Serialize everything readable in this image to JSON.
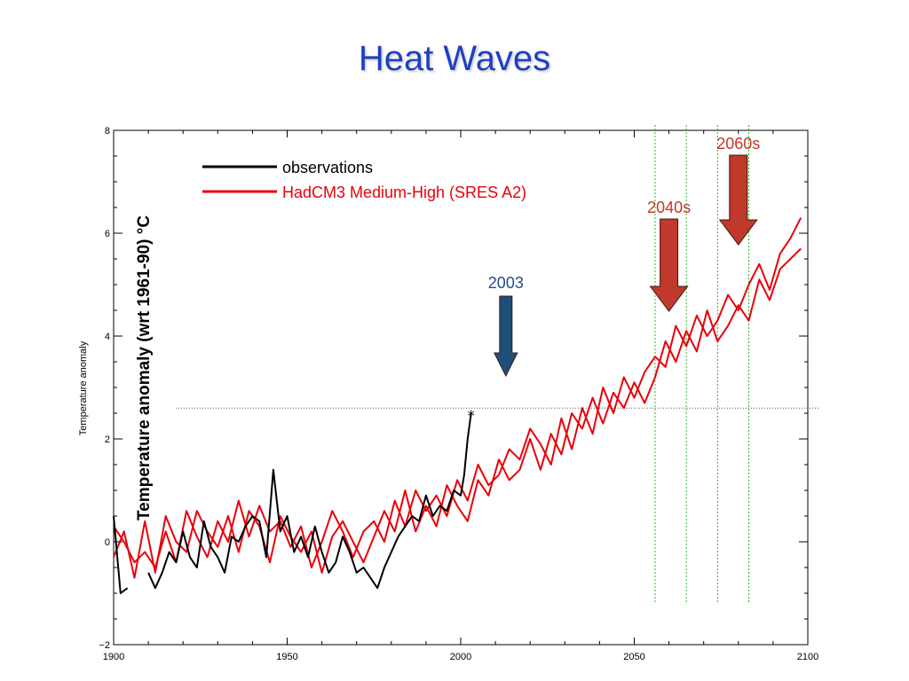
{
  "slide": {
    "title": "Heat Waves"
  },
  "chart_data": {
    "type": "line",
    "xlim": [
      1900,
      2100
    ],
    "ylim": [
      -2,
      8
    ],
    "x_ticks": [
      "1900",
      "1950",
      "2000",
      "2050",
      "2100"
    ],
    "y_ticks": [
      "−2",
      "0",
      "2",
      "4",
      "6",
      "8"
    ],
    "ylabel_small": "Temperature anomaly",
    "ylabel": "Temperature anomaly (wrt 1961-90)  °C",
    "grid": false,
    "legend_placement": "top-left",
    "legend": [
      {
        "label": "observations",
        "color": "#000000",
        "text_color": "#000000"
      },
      {
        "label": "HadCM3 Medium-High (SRES A2)",
        "color": "#e8000b",
        "text_color": "#e8000b"
      }
    ],
    "reference_line": {
      "y": 2.6,
      "style": "dotted"
    },
    "vertical_markers": [
      2056,
      2065,
      2074,
      2083
    ],
    "annotations": [
      {
        "label": "2003",
        "x": 2013,
        "color": "#1f4e8c",
        "arrow_color": "#1f4e79"
      },
      {
        "label": "2040s",
        "x": 2060,
        "color": "#c0392b",
        "arrow_color": "#c0392b"
      },
      {
        "label": "2060s",
        "x": 2080,
        "color": "#c0392b",
        "arrow_color": "#c0392b"
      }
    ],
    "series": [
      {
        "name": "observations",
        "color": "#000000",
        "x": [
          1900,
          1902,
          1904,
          1906,
          1908,
          1910,
          1912,
          1914,
          1916,
          1918,
          1920,
          1922,
          1924,
          1926,
          1928,
          1930,
          1932,
          1934,
          1936,
          1938,
          1940,
          1942,
          1944,
          1946,
          1948,
          1950,
          1952,
          1954,
          1956,
          1958,
          1960,
          1962,
          1964,
          1966,
          1968,
          1970,
          1972,
          1974,
          1976,
          1978,
          1980,
          1982,
          1984,
          1986,
          1988,
          1990,
          1992,
          1994,
          1996,
          1998,
          2000,
          2001,
          2002,
          2003
        ],
        "y": [
          0.5,
          -1.0,
          -0.9,
          null,
          null,
          -0.6,
          -0.9,
          -0.6,
          -0.2,
          -0.4,
          0.2,
          -0.3,
          -0.5,
          0.4,
          -0.1,
          -0.3,
          -0.6,
          0.1,
          0.0,
          0.3,
          0.5,
          0.4,
          -0.3,
          1.4,
          0.2,
          0.5,
          -0.2,
          0.1,
          -0.3,
          0.3,
          -0.2,
          -0.6,
          -0.4,
          0.1,
          -0.2,
          -0.6,
          -0.5,
          -0.7,
          -0.9,
          -0.5,
          -0.2,
          0.1,
          0.3,
          0.5,
          0.4,
          0.9,
          0.5,
          0.7,
          0.6,
          1.0,
          0.9,
          1.3,
          2.0,
          2.5
        ]
      },
      {
        "name": "HadCM3 Medium-High (SRES A2)",
        "color": "#e8000b",
        "x": [
          1900,
          1903,
          1906,
          1909,
          1912,
          1915,
          1918,
          1921,
          1924,
          1927,
          1930,
          1933,
          1936,
          1939,
          1942,
          1945,
          1948,
          1951,
          1954,
          1957,
          1960,
          1963,
          1966,
          1969,
          1972,
          1975,
          1978,
          1981,
          1984,
          1987,
          1990,
          1993,
          1996,
          1999,
          2002,
          2005,
          2008,
          2011,
          2014,
          2017,
          2020,
          2023,
          2026,
          2029,
          2032,
          2035,
          2038,
          2041,
          2044,
          2047,
          2050,
          2053,
          2056,
          2059,
          2062,
          2065,
          2068,
          2071,
          2074,
          2077,
          2080,
          2083,
          2086,
          2089,
          2092,
          2095,
          2098
        ],
        "y": [
          0.3,
          0.0,
          -0.4,
          -0.2,
          -0.5,
          0.2,
          -0.4,
          0.6,
          0.1,
          -0.3,
          0.4,
          0.0,
          0.8,
          0.1,
          0.7,
          0.2,
          0.4,
          -0.1,
          0.3,
          -0.5,
          0.0,
          0.6,
          0.2,
          -0.3,
          0.2,
          0.4,
          0.0,
          0.8,
          0.3,
          1.0,
          0.6,
          0.9,
          0.5,
          1.2,
          0.8,
          1.5,
          1.1,
          1.3,
          1.8,
          1.6,
          2.2,
          1.9,
          1.5,
          2.4,
          1.8,
          2.6,
          2.1,
          3.0,
          2.5,
          3.2,
          2.8,
          3.3,
          3.6,
          3.4,
          4.2,
          3.8,
          4.4,
          4.0,
          4.3,
          4.8,
          4.5,
          5.0,
          5.4,
          4.9,
          5.6,
          5.9,
          6.3
        ]
      },
      {
        "name": "HadCM3 ensemble member",
        "color": "#e8000b",
        "x": [
          1900,
          1903,
          1906,
          1909,
          1912,
          1915,
          1918,
          1921,
          1924,
          1927,
          1930,
          1933,
          1936,
          1939,
          1942,
          1945,
          1948,
          1951,
          1954,
          1957,
          1960,
          1963,
          1966,
          1969,
          1972,
          1975,
          1978,
          1981,
          1984,
          1987,
          1990,
          1993,
          1996,
          1999,
          2002,
          2005,
          2008,
          2011,
          2014,
          2017,
          2020,
          2023,
          2026,
          2029,
          2032,
          2035,
          2038,
          2041,
          2044,
          2047,
          2050,
          2053,
          2056,
          2059,
          2062,
          2065,
          2068,
          2071,
          2074,
          2077,
          2080,
          2083,
          2086,
          2089,
          2092,
          2095,
          2098
        ],
        "y": [
          -0.3,
          0.2,
          -0.7,
          0.4,
          -0.6,
          0.5,
          0.0,
          -0.2,
          0.6,
          0.2,
          -0.1,
          0.5,
          -0.2,
          0.6,
          0.3,
          -0.4,
          0.5,
          0.1,
          -0.2,
          0.2,
          -0.6,
          0.1,
          0.4,
          0.0,
          -0.4,
          0.1,
          0.6,
          0.2,
          1.0,
          0.2,
          0.7,
          0.3,
          1.1,
          0.7,
          0.4,
          1.2,
          0.9,
          1.6,
          1.2,
          1.4,
          2.0,
          1.4,
          2.1,
          1.7,
          2.5,
          2.2,
          2.8,
          2.3,
          2.9,
          2.6,
          3.1,
          2.7,
          3.2,
          3.9,
          3.5,
          4.1,
          3.7,
          4.5,
          3.9,
          4.2,
          4.6,
          4.3,
          5.1,
          4.7,
          5.3,
          5.5,
          5.7
        ]
      }
    ]
  }
}
